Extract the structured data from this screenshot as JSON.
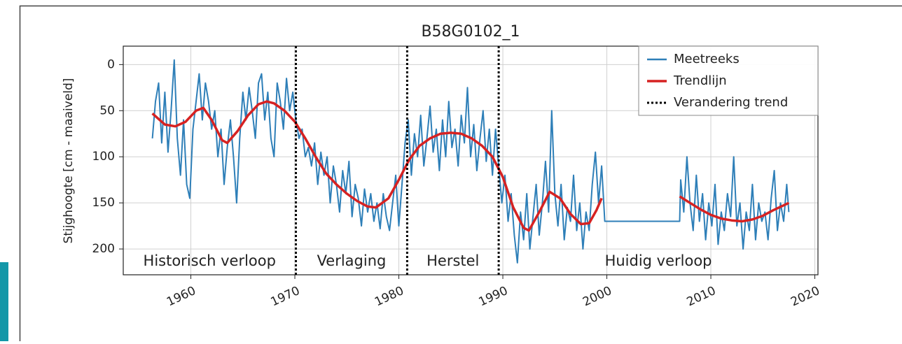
{
  "chart_data": {
    "type": "line",
    "title": "B58G0102_1",
    "y_label": "Stijghoogte [cm - maaiveld]",
    "xlim": [
      1953.5,
      2020.3
    ],
    "xticks": [
      1960,
      1970,
      1980,
      1990,
      2000,
      2010,
      2020
    ],
    "ylim": [
      -20,
      228
    ],
    "yticks": [
      0,
      50,
      100,
      150,
      200
    ],
    "y_inverted": true,
    "grid": true,
    "legend": "upper right",
    "series": [
      {
        "name": "Meetreeks",
        "color": "#2e7fb8",
        "x": [
          1956.3,
          1956.6,
          1956.9,
          1957.2,
          1957.5,
          1957.8,
          1958.1,
          1958.4,
          1958.7,
          1959.0,
          1959.3,
          1959.6,
          1959.9,
          1960.2,
          1960.5,
          1960.8,
          1961.1,
          1961.4,
          1961.7,
          1962.0,
          1962.3,
          1962.6,
          1962.9,
          1963.2,
          1963.5,
          1963.8,
          1964.1,
          1964.4,
          1964.7,
          1965.0,
          1965.3,
          1965.6,
          1965.9,
          1966.2,
          1966.5,
          1966.8,
          1967.1,
          1967.4,
          1967.7,
          1968.0,
          1968.3,
          1968.6,
          1968.9,
          1969.2,
          1969.5,
          1969.8,
          1970.1,
          1970.4,
          1970.7,
          1971.0,
          1971.3,
          1971.6,
          1971.9,
          1972.2,
          1972.5,
          1972.8,
          1973.1,
          1973.4,
          1973.7,
          1974.0,
          1974.3,
          1974.6,
          1974.9,
          1975.2,
          1975.5,
          1975.8,
          1976.1,
          1976.4,
          1976.7,
          1977.0,
          1977.3,
          1977.6,
          1977.9,
          1978.2,
          1978.5,
          1978.8,
          1979.1,
          1979.4,
          1979.7,
          1980.0,
          1980.3,
          1980.6,
          1980.9,
          1981.2,
          1981.5,
          1981.8,
          1982.1,
          1982.4,
          1982.7,
          1983.0,
          1983.3,
          1983.6,
          1983.9,
          1984.2,
          1984.5,
          1984.8,
          1985.1,
          1985.4,
          1985.7,
          1986.0,
          1986.3,
          1986.6,
          1986.9,
          1987.2,
          1987.5,
          1987.8,
          1988.1,
          1988.4,
          1988.7,
          1989.0,
          1989.3,
          1989.6,
          1989.9,
          1990.2,
          1990.5,
          1990.8,
          1991.1,
          1991.4,
          1991.7,
          1992.0,
          1992.3,
          1992.6,
          1992.9,
          1993.2,
          1993.5,
          1993.8,
          1994.1,
          1994.4,
          1994.7,
          1995.0,
          1995.3,
          1995.6,
          1995.9,
          1996.2,
          1996.5,
          1996.8,
          1997.1,
          1997.4,
          1997.7,
          1998.0,
          1998.3,
          1998.6,
          1998.9,
          1999.2,
          1999.5,
          1999.8,
          2007.0,
          2007.1,
          2007.4,
          2007.7,
          2008.0,
          2008.3,
          2008.6,
          2008.9,
          2009.2,
          2009.5,
          2009.8,
          2010.1,
          2010.4,
          2010.7,
          2011.0,
          2011.3,
          2011.6,
          2011.9,
          2012.2,
          2012.5,
          2012.8,
          2013.1,
          2013.4,
          2013.7,
          2014.0,
          2014.3,
          2014.6,
          2014.9,
          2015.2,
          2015.5,
          2015.8,
          2016.1,
          2016.4,
          2016.7,
          2017.0,
          2017.3,
          2017.5
        ],
        "values": [
          80,
          40,
          20,
          85,
          30,
          95,
          50,
          -5,
          80,
          120,
          60,
          130,
          145,
          70,
          40,
          10,
          60,
          20,
          40,
          70,
          50,
          100,
          70,
          130,
          90,
          60,
          100,
          150,
          80,
          30,
          60,
          25,
          50,
          80,
          20,
          10,
          60,
          30,
          80,
          100,
          20,
          40,
          70,
          15,
          50,
          30,
          60,
          80,
          70,
          100,
          90,
          110,
          85,
          130,
          95,
          120,
          100,
          150,
          110,
          130,
          160,
          115,
          140,
          105,
          165,
          130,
          145,
          175,
          135,
          160,
          140,
          170,
          150,
          178,
          140,
          165,
          180,
          150,
          120,
          175,
          130,
          85,
          60,
          120,
          75,
          100,
          55,
          110,
          80,
          45,
          95,
          70,
          115,
          60,
          100,
          40,
          90,
          70,
          110,
          55,
          85,
          25,
          100,
          65,
          115,
          80,
          50,
          105,
          70,
          120,
          70,
          110,
          150,
          120,
          170,
          140,
          185,
          215,
          160,
          190,
          140,
          200,
          165,
          130,
          185,
          150,
          105,
          160,
          50,
          140,
          175,
          130,
          190,
          155,
          170,
          120,
          180,
          150,
          200,
          160,
          180,
          130,
          95,
          150,
          110,
          170,
          170,
          125,
          160,
          100,
          150,
          180,
          120,
          170,
          140,
          190,
          150,
          175,
          130,
          195,
          160,
          180,
          140,
          165,
          100,
          175,
          150,
          200,
          160,
          180,
          130,
          190,
          150,
          170,
          160,
          190,
          145,
          115,
          180,
          150,
          170,
          130,
          160
        ]
      },
      {
        "name": "Trendlijn",
        "color": "#d62222",
        "x": [
          1956.3,
          1957.5,
          1958.5,
          1959.5,
          1960.5,
          1961.2,
          1962,
          1963,
          1963.5,
          1964.5,
          1965.5,
          1966.5,
          1967.3,
          1968,
          1969,
          1970,
          1971,
          1972,
          1973,
          1974,
          1975,
          1976,
          1977,
          1977.8,
          1979,
          1980,
          1981,
          1982,
          1983,
          1984,
          1985,
          1986,
          1987,
          1988,
          1989,
          1990,
          1991,
          1992,
          1992.5,
          1993.5,
          1994.5,
          1995.5,
          1996.5,
          1997.5,
          1998.3,
          1999,
          1999.5,
          2003,
          2007,
          2008,
          2009,
          2010,
          2011,
          2012,
          2013,
          2014,
          2015,
          2016,
          2017.5
        ],
        "values": [
          53,
          65,
          67,
          62,
          50,
          47,
          60,
          82,
          85,
          72,
          55,
          43,
          40,
          42,
          50,
          62,
          80,
          100,
          118,
          130,
          140,
          148,
          154,
          155,
          145,
          125,
          103,
          88,
          80,
          75,
          74,
          75,
          80,
          88,
          100,
          122,
          155,
          177,
          180,
          160,
          138,
          145,
          162,
          173,
          172,
          158,
          145,
          null,
          143,
          150,
          157,
          163,
          167,
          169,
          170,
          168,
          164,
          158,
          150
        ]
      },
      {
        "name": "Verandering trend",
        "color": "#000000",
        "x": [
          1970.1,
          1980.8,
          1989.6
        ]
      }
    ],
    "annotations": [
      "Historisch verloop",
      "Verlaging",
      "Herstel",
      "Huidig verloop"
    ]
  }
}
